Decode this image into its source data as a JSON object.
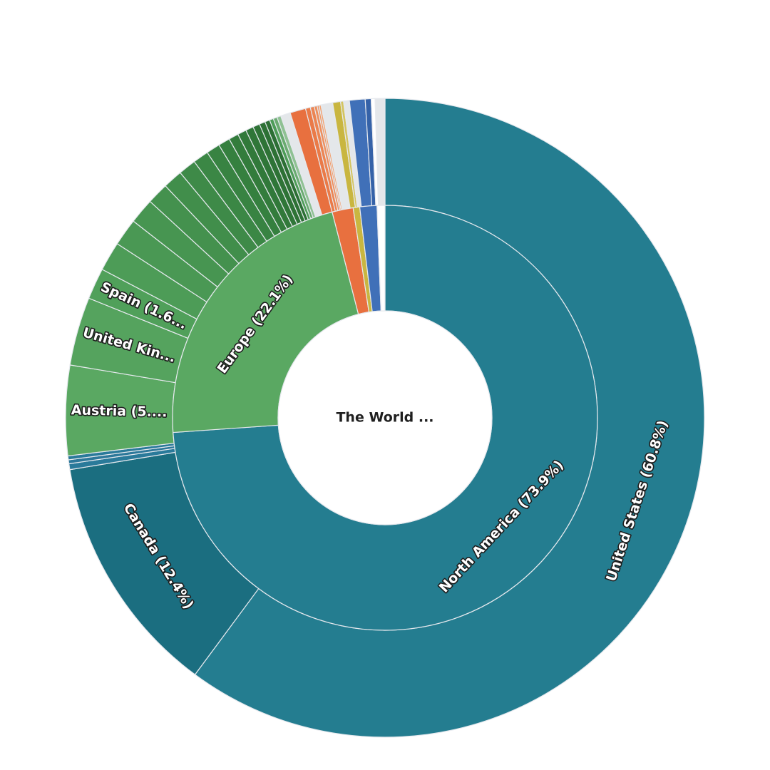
{
  "chart_data": {
    "type": "sunburst",
    "title": "The World ...",
    "unit": "percent",
    "rings": [
      {
        "level": "region",
        "segments": [
          {
            "name": "North America",
            "label": "North America (73.9%)",
            "value": 73.9,
            "color": "#247d90"
          },
          {
            "name": "Europe",
            "label": "Europe (22.1%)",
            "value": 22.1,
            "color": "#5aa862"
          },
          {
            "name": "",
            "label": "",
            "value": 1.6,
            "color": "#e8703f"
          },
          {
            "name": "",
            "label": "",
            "value": 0.5,
            "color": "#c9b640"
          },
          {
            "name": "",
            "label": "",
            "value": 1.3,
            "color": "#4070b8"
          },
          {
            "name": "",
            "label": "",
            "value": 0.6,
            "color": "#ffffff"
          }
        ]
      },
      {
        "level": "country",
        "segments": [
          {
            "name": "United States",
            "label": "United States (60.8%)",
            "value": 60.8,
            "color": "#247d90"
          },
          {
            "name": "Canada",
            "label": "Canada (12.4%)",
            "value": 12.4,
            "color": "#1b6e80"
          },
          {
            "name": "",
            "label": "",
            "value": 0.3,
            "color": "#2a7a9a"
          },
          {
            "name": "",
            "label": "",
            "value": 0.2,
            "color": "#2d789a"
          },
          {
            "name": "",
            "label": "",
            "value": 0.2,
            "color": "#2a7a9a"
          },
          {
            "name": "Austria",
            "label": "Austria (5....",
            "value": 4.6,
            "color": "#5aa862"
          },
          {
            "name": "United Kingdom",
            "label": "United Kin...",
            "value": 3.5,
            "color": "#55a35e"
          },
          {
            "name": "Spain",
            "label": "Spain (1.6...",
            "value": 1.6,
            "color": "#50a05a"
          },
          {
            "name": "",
            "label": "",
            "value": 1.5,
            "color": "#4d9c57"
          },
          {
            "name": "",
            "label": "",
            "value": 1.4,
            "color": "#4a9854"
          },
          {
            "name": "",
            "label": "",
            "value": 1.3,
            "color": "#479551"
          },
          {
            "name": "",
            "label": "",
            "value": 1.1,
            "color": "#44914e"
          },
          {
            "name": "",
            "label": "",
            "value": 1.0,
            "color": "#418e4b"
          },
          {
            "name": "",
            "label": "",
            "value": 0.9,
            "color": "#3e8a48"
          },
          {
            "name": "",
            "label": "",
            "value": 0.8,
            "color": "#3b8745"
          },
          {
            "name": "",
            "label": "",
            "value": 0.7,
            "color": "#388342"
          },
          {
            "name": "",
            "label": "",
            "value": 0.6,
            "color": "#35803f"
          },
          {
            "name": "",
            "label": "",
            "value": 0.5,
            "color": "#337c3c"
          },
          {
            "name": "",
            "label": "",
            "value": 0.45,
            "color": "#31793a"
          },
          {
            "name": "",
            "label": "",
            "value": 0.4,
            "color": "#2f7638"
          },
          {
            "name": "",
            "label": "",
            "value": 0.35,
            "color": "#2e7336"
          },
          {
            "name": "",
            "label": "",
            "value": 0.3,
            "color": "#2d7135"
          },
          {
            "name": "",
            "label": "",
            "value": 0.25,
            "color": "#2c6f34"
          },
          {
            "name": "",
            "label": "",
            "value": 0.2,
            "color": "#4d9c57"
          },
          {
            "name": "",
            "label": "",
            "value": 0.2,
            "color": "#6aab70"
          },
          {
            "name": "",
            "label": "",
            "value": 0.2,
            "color": "#8fc193"
          },
          {
            "name": "",
            "label": "",
            "value": 0.5,
            "color": "#e4e7ea"
          },
          {
            "name": "",
            "label": "",
            "value": 0.8,
            "color": "#e8703f"
          },
          {
            "name": "",
            "label": "",
            "value": 0.25,
            "color": "#ea7a48"
          },
          {
            "name": "",
            "label": "",
            "value": 0.2,
            "color": "#ec8452"
          },
          {
            "name": "",
            "label": "",
            "value": 0.15,
            "color": "#ee8e5c"
          },
          {
            "name": "",
            "label": "",
            "value": 0.1,
            "color": "#f09866"
          },
          {
            "name": "",
            "label": "",
            "value": 0.1,
            "color": "#f2a270"
          },
          {
            "name": "",
            "label": "",
            "value": 0.6,
            "color": "#e4e7ea"
          },
          {
            "name": "",
            "label": "",
            "value": 0.4,
            "color": "#c9b640"
          },
          {
            "name": "",
            "label": "",
            "value": 0.15,
            "color": "#d4c460"
          },
          {
            "name": "",
            "label": "",
            "value": 0.3,
            "color": "#e4e7ea"
          },
          {
            "name": "",
            "label": "",
            "value": 0.8,
            "color": "#4070b8"
          },
          {
            "name": "",
            "label": "",
            "value": 0.3,
            "color": "#3562a8"
          },
          {
            "name": "",
            "label": "",
            "value": 0.2,
            "color": "#ffffff"
          },
          {
            "name": "",
            "label": "",
            "value": 0.5,
            "color": "#e4e7ea"
          }
        ]
      }
    ]
  }
}
